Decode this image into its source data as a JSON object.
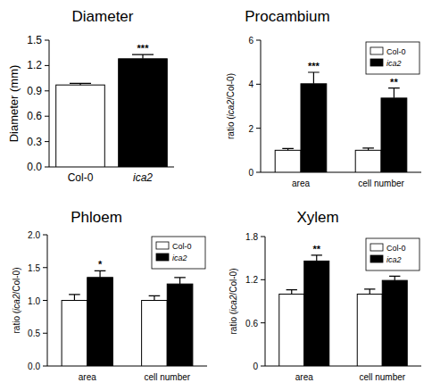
{
  "chart_data": [
    {
      "type": "bar",
      "title": "Diameter",
      "y_label": "Diameter (mm)",
      "categories": [
        "Col-0",
        "ica2"
      ],
      "values": [
        0.97,
        1.28
      ],
      "errors": [
        0.02,
        0.05
      ],
      "significance": [
        null,
        "***"
      ],
      "colors": [
        "#ffffff",
        "#000000"
      ],
      "ylim": [
        0,
        1.5
      ],
      "yticks": [
        {
          "value": 0,
          "label": "0.0"
        },
        {
          "value": 0.3,
          "label": "0.3"
        },
        {
          "value": 0.6,
          "label": "0.6"
        },
        {
          "value": 0.9,
          "label": "0.9"
        },
        {
          "value": 1.2,
          "label": "1.2"
        },
        {
          "value": 1.5,
          "label": "1.5"
        }
      ],
      "grid": false
    },
    {
      "type": "bar",
      "title": "Procambium",
      "y_label": "ratio (ica2/Col-0)",
      "categories": [
        "area",
        "cell number"
      ],
      "series": [
        {
          "name": "Col-0",
          "color": "#ffffff",
          "values": [
            1.0,
            1.0
          ],
          "errors": [
            0.08,
            0.1
          ],
          "significance": [
            null,
            null
          ]
        },
        {
          "name": "ica2",
          "color": "#000000",
          "values": [
            4.02,
            3.37
          ],
          "errors": [
            0.52,
            0.46
          ],
          "significance": [
            "***",
            "**"
          ]
        }
      ],
      "ylim": [
        0,
        6
      ],
      "yticks": [
        0,
        2,
        4,
        6
      ],
      "legend": "upper right",
      "grid": false
    },
    {
      "type": "bar",
      "title": "Phloem",
      "y_label": "ratio (ica2/Col-0)",
      "categories": [
        "area",
        "cell number"
      ],
      "series": [
        {
          "name": "Col-0",
          "color": "#ffffff",
          "values": [
            1.0,
            1.0
          ],
          "errors": [
            0.09,
            0.07
          ],
          "significance": [
            null,
            null
          ]
        },
        {
          "name": "ica2",
          "color": "#000000",
          "values": [
            1.35,
            1.25
          ],
          "errors": [
            0.1,
            0.1
          ],
          "significance": [
            "*",
            null
          ]
        }
      ],
      "ylim": [
        0,
        2
      ],
      "yticks": [
        {
          "value": 0,
          "label": "0.0"
        },
        {
          "value": 0.5,
          "label": "0.5"
        },
        {
          "value": 1,
          "label": "1.0"
        },
        {
          "value": 1.5,
          "label": "1.5"
        },
        {
          "value": 2,
          "label": "2.0"
        }
      ],
      "legend": "upper right",
      "grid": false
    },
    {
      "type": "bar",
      "title": "Xylem",
      "y_label": "ratio (ica2/Col-0)",
      "categories": [
        "area",
        "cell number"
      ],
      "series": [
        {
          "name": "Col-0",
          "color": "#ffffff",
          "values": [
            1.0,
            1.0
          ],
          "errors": [
            0.06,
            0.07
          ],
          "significance": [
            null,
            null
          ]
        },
        {
          "name": "ica2",
          "color": "#000000",
          "values": [
            1.46,
            1.19
          ],
          "errors": [
            0.08,
            0.06
          ],
          "significance": [
            "**",
            null
          ]
        }
      ],
      "ylim": [
        0,
        1.8
      ],
      "yticks": [
        0,
        0.6,
        1.2,
        1.8
      ],
      "legend": "upper right",
      "grid": false
    }
  ]
}
